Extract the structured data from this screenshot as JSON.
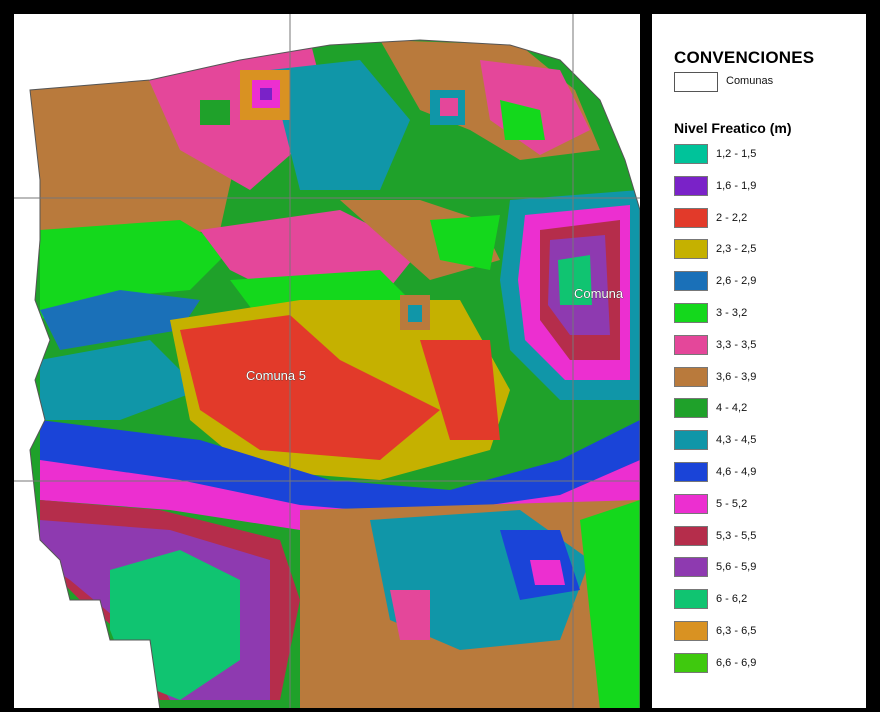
{
  "map": {
    "labels": [
      "Comuna 5",
      "Comuna"
    ]
  },
  "legend": {
    "title": "CONVENCIONES",
    "comunas_label": "Comunas",
    "subtitle": "Nivel Freatico (m)",
    "items": [
      {
        "label": "1,2 - 1,5",
        "color": "#00c39a"
      },
      {
        "label": "1,6 - 1,9",
        "color": "#7a22c8"
      },
      {
        "label": "2 - 2,2",
        "color": "#e23a2a"
      },
      {
        "label": "2,3 - 2,5",
        "color": "#c5b100"
      },
      {
        "label": "2,6 - 2,9",
        "color": "#1a70b8"
      },
      {
        "label": "3 - 3,2",
        "color": "#14d81c"
      },
      {
        "label": "3,3 - 3,5",
        "color": "#e4479a"
      },
      {
        "label": "3,6 - 3,9",
        "color": "#b97a3c"
      },
      {
        "label": "4 - 4,2",
        "color": "#1fa12a"
      },
      {
        "label": "4,3 - 4,5",
        "color": "#1096a8"
      },
      {
        "label": "4,6 - 4,9",
        "color": "#1a44d8"
      },
      {
        "label": "5 - 5,2",
        "color": "#ec2fd0"
      },
      {
        "label": "5,3 - 5,5",
        "color": "#b52d4b"
      },
      {
        "label": "5,6 - 5,9",
        "color": "#8e3ab0"
      },
      {
        "label": "6 - 6,2",
        "color": "#10c471"
      },
      {
        "label": "6,3 - 6,5",
        "color": "#d99222"
      },
      {
        "label": "6,6 - 6,9",
        "color": "#3fc90e"
      }
    ]
  }
}
